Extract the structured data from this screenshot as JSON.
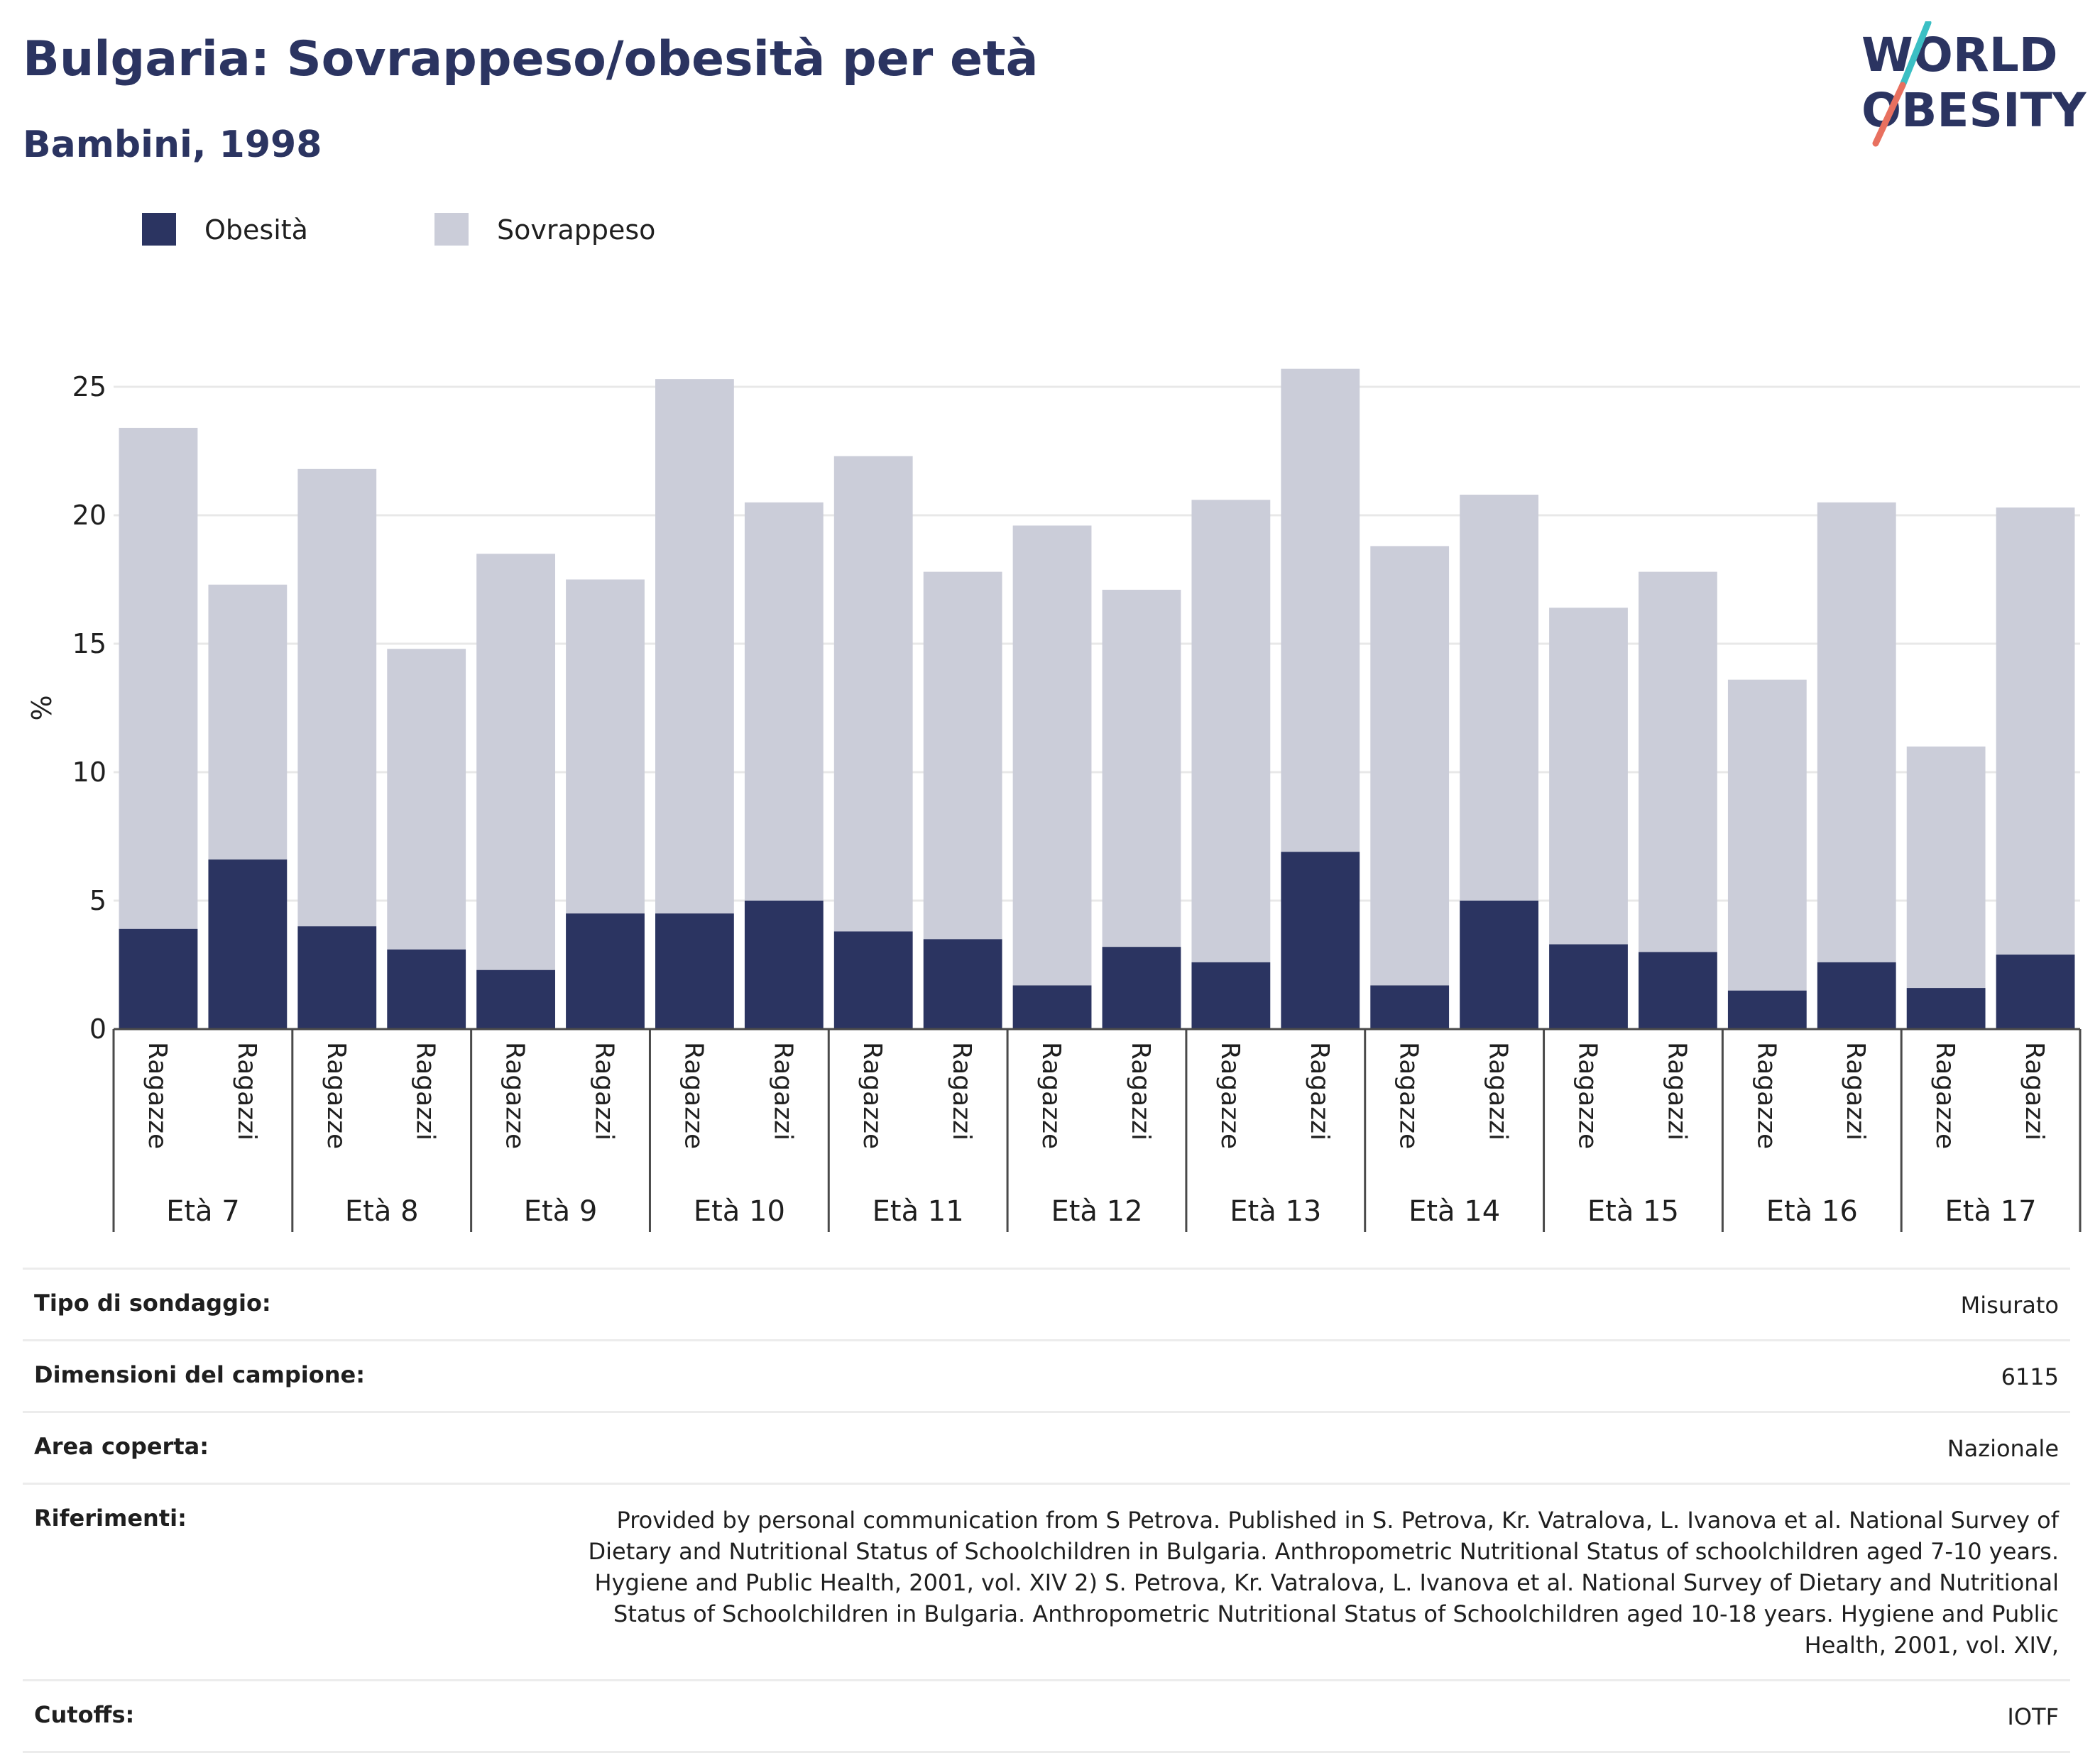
{
  "header": {
    "title": "Bulgaria: Sovrappeso/obesità per età",
    "subtitle": "Bambini, 1998"
  },
  "logo": {
    "line1": "WORLD",
    "line2": "OBESITY",
    "colors": {
      "text": "#2b3461",
      "slash_top": "#3bbfc4",
      "slash_bottom": "#e8705f"
    }
  },
  "legend": [
    {
      "label": "Obesità",
      "color": "#2b3461"
    },
    {
      "label": "Sovrappeso",
      "color": "#cbcdd9"
    }
  ],
  "chart_data": {
    "type": "bar",
    "stacked": true,
    "ylabel": "%",
    "ylim": [
      0,
      26
    ],
    "yticks": [
      0,
      5,
      10,
      15,
      20,
      25
    ],
    "grid": true,
    "legend_position": "top-left",
    "genders": [
      "Ragazze",
      "Ragazzi"
    ],
    "groups": [
      "Età 7",
      "Età 8",
      "Età 9",
      "Età 10",
      "Età 11",
      "Età 12",
      "Età 13",
      "Età 14",
      "Età 15",
      "Età 16",
      "Età 17"
    ],
    "series": [
      {
        "name": "Obesità",
        "color": "#2b3461",
        "values": [
          3.9,
          6.6,
          4.0,
          3.1,
          2.3,
          4.5,
          4.5,
          5.0,
          3.8,
          3.5,
          1.7,
          3.2,
          2.6,
          6.9,
          1.7,
          5.0,
          3.3,
          3.0,
          1.5,
          2.6,
          1.6,
          2.9
        ]
      },
      {
        "name": "Sovrappeso",
        "color": "#cbcdd9",
        "values": [
          19.5,
          10.7,
          17.8,
          11.7,
          16.2,
          13.0,
          20.8,
          15.5,
          18.5,
          14.3,
          17.9,
          13.9,
          18.0,
          18.8,
          17.1,
          15.8,
          13.1,
          14.8,
          12.1,
          17.9,
          9.4,
          17.4
        ]
      }
    ]
  },
  "info": [
    {
      "label": "Tipo di sondaggio:",
      "value": "Misurato"
    },
    {
      "label": "Dimensioni del campione:",
      "value": "6115"
    },
    {
      "label": "Area coperta:",
      "value": "Nazionale"
    },
    {
      "label": "Riferimenti:",
      "value": "Provided by personal communication from S Petrova. Published in S. Petrova, Kr. Vatralova, L. Ivanova et al. National Survey of Dietary and Nutritional Status of Schoolchildren in Bulgaria. Anthropometric Nutritional Status of schoolchildren aged 7-10 years. Hygiene and Public Health, 2001, vol. XIV 2) S. Petrova, Kr. Vatralova, L. Ivanova et al. National Survey of Dietary and Nutritional Status of Schoolchildren in Bulgaria. Anthropometric Nutritional Status of Schoolchildren aged 10-18 years. Hygiene and Public Health, 2001, vol. XIV,"
    },
    {
      "label": "Cutoffs:",
      "value": "IOTF"
    }
  ]
}
